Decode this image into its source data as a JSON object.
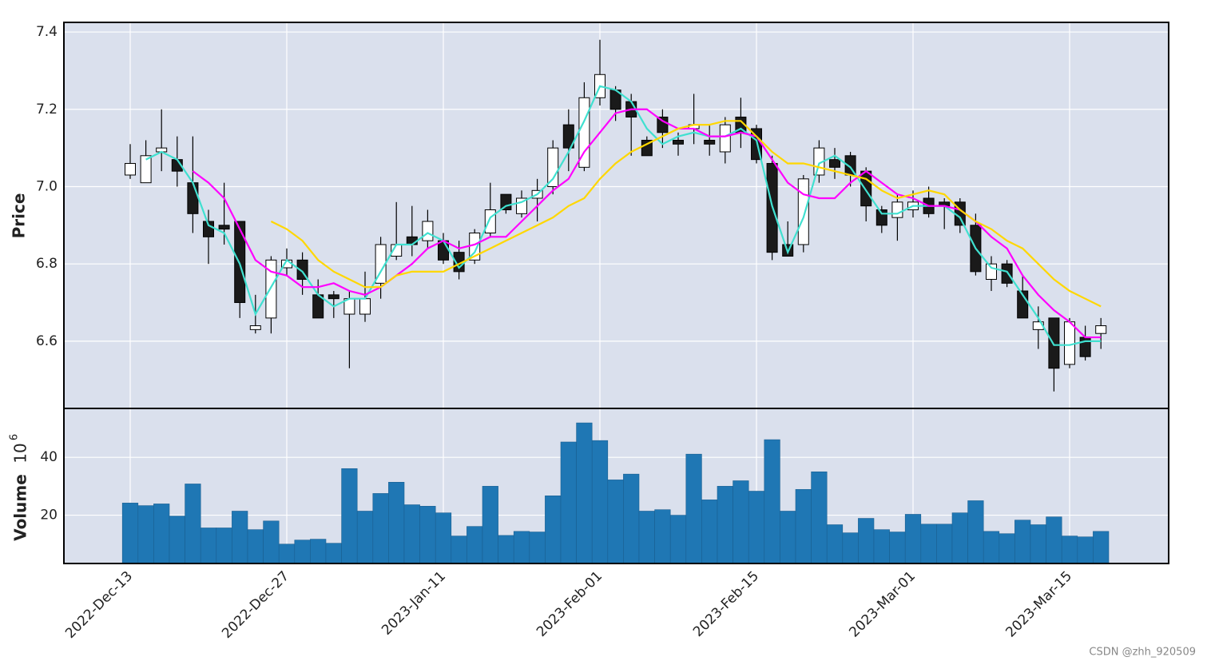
{
  "chart_data": [
    {
      "type": "candlestick",
      "ylabel": "Price",
      "up_color": "#ffffff",
      "down_color": "#1a1a1a",
      "edge_color": "#000000",
      "open": [
        7.03,
        7.01,
        7.09,
        7.07,
        7.01,
        6.91,
        6.9,
        6.91,
        6.63,
        6.66,
        6.79,
        6.81,
        6.72,
        6.72,
        6.67,
        6.67,
        6.75,
        6.82,
        6.87,
        6.86,
        6.86,
        6.83,
        6.81,
        6.88,
        6.98,
        6.93,
        6.97,
        7.0,
        7.16,
        7.05,
        7.23,
        7.25,
        7.22,
        7.12,
        7.18,
        7.12,
        7.15,
        7.12,
        7.09,
        7.18,
        7.15,
        7.06,
        6.85,
        6.85,
        7.03,
        7.07,
        7.08,
        7.04,
        6.94,
        6.92,
        6.94,
        6.97,
        6.96,
        6.96,
        6.9,
        6.76,
        6.8,
        6.73,
        6.63,
        6.66,
        6.54,
        6.61,
        6.62
      ],
      "high": [
        7.11,
        7.12,
        7.2,
        7.13,
        7.13,
        6.94,
        7.01,
        6.91,
        6.72,
        6.82,
        6.84,
        6.83,
        6.76,
        6.73,
        6.73,
        6.78,
        6.87,
        6.96,
        6.95,
        6.94,
        6.88,
        6.86,
        6.89,
        7.01,
        6.98,
        6.99,
        7.02,
        7.12,
        7.2,
        7.27,
        7.38,
        7.26,
        7.24,
        7.13,
        7.2,
        7.14,
        7.24,
        7.16,
        7.18,
        7.23,
        7.16,
        7.08,
        6.91,
        7.03,
        7.12,
        7.1,
        7.09,
        7.05,
        6.95,
        6.98,
        6.99,
        7.0,
        6.97,
        6.97,
        6.93,
        6.82,
        6.81,
        6.77,
        6.69,
        6.66,
        6.66,
        6.64,
        6.66
      ],
      "low": [
        7.02,
        7.01,
        7.04,
        7.0,
        6.88,
        6.8,
        6.85,
        6.66,
        6.62,
        6.62,
        6.77,
        6.72,
        6.66,
        6.66,
        6.53,
        6.65,
        6.71,
        6.81,
        6.82,
        6.84,
        6.8,
        6.76,
        6.8,
        6.87,
        6.93,
        6.92,
        6.91,
        6.98,
        7.04,
        7.04,
        7.21,
        7.17,
        7.08,
        7.08,
        7.1,
        7.08,
        7.11,
        7.08,
        7.06,
        7.1,
        7.06,
        6.81,
        6.82,
        6.83,
        7.01,
        7.02,
        7.0,
        6.91,
        6.88,
        6.86,
        6.92,
        6.92,
        6.89,
        6.88,
        6.77,
        6.73,
        6.74,
        6.66,
        6.58,
        6.47,
        6.53,
        6.55,
        6.58
      ],
      "close": [
        7.06,
        7.08,
        7.1,
        7.04,
        6.93,
        6.87,
        6.89,
        6.7,
        6.64,
        6.81,
        6.81,
        6.76,
        6.66,
        6.71,
        6.71,
        6.71,
        6.85,
        6.85,
        6.85,
        6.91,
        6.81,
        6.78,
        6.88,
        6.94,
        6.94,
        6.97,
        6.99,
        7.1,
        7.1,
        7.23,
        7.29,
        7.2,
        7.18,
        7.08,
        7.14,
        7.11,
        7.16,
        7.11,
        7.16,
        7.14,
        7.07,
        6.83,
        6.82,
        7.02,
        7.1,
        7.05,
        7.03,
        6.95,
        6.9,
        6.96,
        6.96,
        6.93,
        6.95,
        6.9,
        6.78,
        6.8,
        6.75,
        6.66,
        6.65,
        6.53,
        6.65,
        6.56,
        6.64
      ],
      "series": [
        {
          "color": "#40e0d0",
          "values": [
            null,
            7.07,
            7.09,
            7.07,
            7.01,
            6.9,
            6.88,
            6.8,
            6.67,
            6.74,
            6.81,
            6.78,
            6.72,
            6.69,
            6.71,
            6.71,
            6.78,
            6.85,
            6.85,
            6.88,
            6.86,
            6.79,
            6.83,
            6.92,
            6.95,
            6.96,
            6.98,
            7.02,
            7.09,
            7.17,
            7.26,
            7.25,
            7.22,
            7.15,
            7.11,
            7.13,
            7.14,
            7.13,
            7.13,
            7.15,
            7.12,
            6.95,
            6.83,
            6.92,
            7.06,
            7.08,
            7.05,
            6.99,
            6.93,
            6.93,
            6.95,
            6.95,
            6.95,
            6.92,
            6.84,
            6.79,
            6.78,
            6.72,
            6.66,
            6.59,
            6.59,
            6.6,
            6.6
          ]
        },
        {
          "color": "#ff00ff",
          "values": [
            null,
            null,
            null,
            null,
            7.04,
            7.01,
            6.97,
            6.89,
            6.81,
            6.78,
            6.77,
            6.74,
            6.74,
            6.75,
            6.73,
            6.72,
            6.74,
            6.77,
            6.8,
            6.84,
            6.86,
            6.84,
            6.85,
            6.87,
            6.87,
            6.91,
            6.95,
            6.99,
            7.02,
            7.09,
            7.14,
            7.19,
            7.2,
            7.2,
            7.17,
            7.15,
            7.15,
            7.13,
            7.13,
            7.14,
            7.13,
            7.07,
            7.01,
            6.98,
            6.97,
            6.97,
            7.01,
            7.04,
            7.01,
            6.98,
            6.97,
            6.95,
            6.95,
            6.94,
            6.91,
            6.87,
            6.84,
            6.77,
            6.72,
            6.68,
            6.65,
            6.61,
            6.61
          ]
        },
        {
          "color": "#ffd700",
          "values": [
            null,
            null,
            null,
            null,
            null,
            null,
            null,
            null,
            null,
            6.91,
            6.89,
            6.86,
            6.81,
            6.78,
            6.76,
            6.74,
            6.74,
            6.77,
            6.78,
            6.78,
            6.78,
            6.8,
            6.82,
            6.84,
            6.86,
            6.88,
            6.9,
            6.92,
            6.95,
            6.97,
            7.02,
            7.06,
            7.09,
            7.11,
            7.13,
            7.15,
            7.16,
            7.16,
            7.17,
            7.17,
            7.13,
            7.09,
            7.06,
            7.06,
            7.05,
            7.04,
            7.03,
            7.02,
            6.99,
            6.97,
            6.98,
            6.99,
            6.98,
            6.94,
            6.91,
            6.89,
            6.86,
            6.84,
            6.8,
            6.76,
            6.73,
            6.71,
            6.69
          ]
        }
      ],
      "ylim": [
        6.426,
        7.425
      ],
      "yticks": [
        6.6,
        6.8,
        {
          "value": 7,
          "label": "7.0"
        },
        7.2,
        7.4
      ],
      "grid": true
    },
    {
      "type": "bar",
      "ylabel": "Volume",
      "offset_base": "10",
      "offset_exponent": "6",
      "color": "#1f77b4",
      "categories": [
        "2022-Dec-13",
        null,
        null,
        null,
        null,
        null,
        null,
        null,
        null,
        null,
        "2022-Dec-27",
        null,
        null,
        null,
        null,
        null,
        null,
        null,
        null,
        null,
        "2023-Jan-11",
        null,
        null,
        null,
        null,
        null,
        null,
        null,
        null,
        null,
        "2023-Feb-01",
        null,
        null,
        null,
        null,
        null,
        null,
        null,
        null,
        null,
        "2023-Feb-15",
        null,
        null,
        null,
        null,
        null,
        null,
        null,
        null,
        null,
        "2023-Mar-01",
        null,
        null,
        null,
        null,
        null,
        null,
        null,
        null,
        null,
        "2023-Mar-15",
        null,
        null
      ],
      "values": [
        24.2,
        23.3,
        23.9,
        19.7,
        30.8,
        15.6,
        15.6,
        21.4,
        15.0,
        18.0,
        10.0,
        11.4,
        11.7,
        10.3,
        36.1,
        21.4,
        27.5,
        31.4,
        23.6,
        23.1,
        20.8,
        12.8,
        16.1,
        30.0,
        13.0,
        14.4,
        14.2,
        26.7,
        45.3,
        51.9,
        45.8,
        32.2,
        34.2,
        21.4,
        21.9,
        20.0,
        41.1,
        25.3,
        30.0,
        31.9,
        28.3,
        46.1,
        21.4,
        28.9,
        35.0,
        16.7,
        13.9,
        18.9,
        15.0,
        14.2,
        20.3,
        16.9,
        16.9,
        20.8,
        25.0,
        14.4,
        13.6,
        18.3,
        16.7,
        19.4,
        12.8,
        12.5,
        14.4
      ],
      "ylim": [
        3.3,
        56.9
      ],
      "yticks": [
        20,
        40
      ],
      "grid": true
    }
  ],
  "watermark": "CSDN @zhh_920509"
}
